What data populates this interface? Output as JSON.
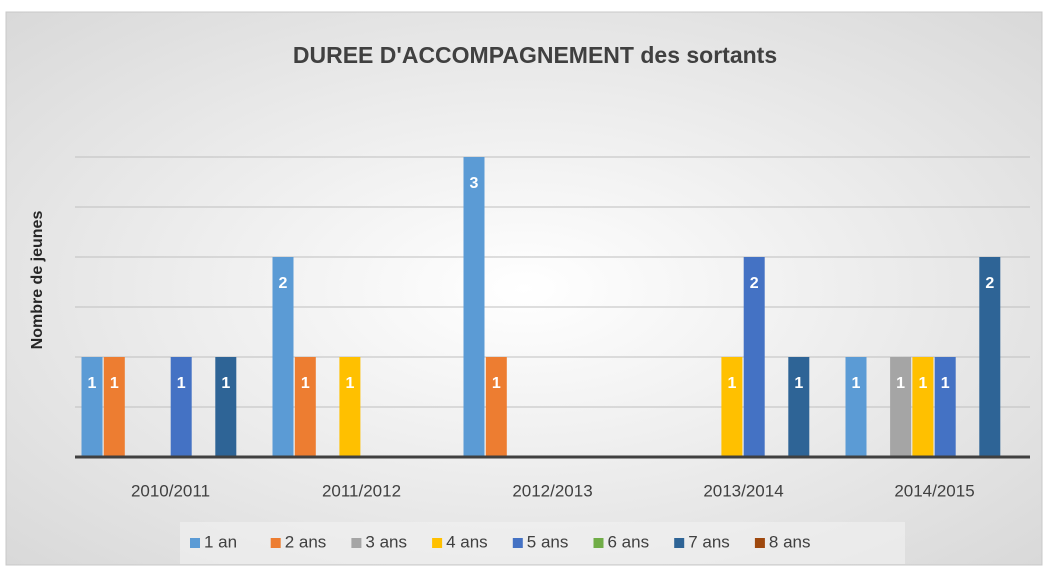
{
  "chart_data": {
    "type": "bar",
    "title": "DUREE D'ACCOMPAGNEMENT des sortants",
    "ylabel": "Nombre de jeunes",
    "categories": [
      "2010/2011",
      "2011/2012",
      "2012/2013",
      "2013/2014",
      "2014/2015"
    ],
    "series": [
      {
        "name": "1 an",
        "color": "#5b9bd5",
        "values": [
          1,
          2,
          3,
          null,
          1
        ]
      },
      {
        "name": "2 ans",
        "color": "#ed7d31",
        "values": [
          1,
          1,
          1,
          null,
          null
        ]
      },
      {
        "name": "3 ans",
        "color": "#a5a5a5",
        "values": [
          null,
          null,
          null,
          null,
          1
        ]
      },
      {
        "name": "4 ans",
        "color": "#ffc000",
        "values": [
          null,
          1,
          null,
          1,
          1
        ]
      },
      {
        "name": "5 ans",
        "color": "#4472c4",
        "values": [
          1,
          null,
          null,
          2,
          1
        ]
      },
      {
        "name": "6 ans",
        "color": "#70ad47",
        "values": [
          null,
          null,
          null,
          null,
          null
        ]
      },
      {
        "name": "7 ans",
        "color": "#2e6496",
        "values": [
          1,
          null,
          null,
          1,
          2
        ]
      },
      {
        "name": "8 ans",
        "color": "#9e480e",
        "values": [
          null,
          null,
          null,
          null,
          null
        ]
      }
    ],
    "ylim": [
      0,
      3
    ],
    "yticks": [
      0,
      0.5,
      1,
      1.5,
      2,
      2.5,
      3
    ],
    "grid": true,
    "legend": "bottom"
  }
}
